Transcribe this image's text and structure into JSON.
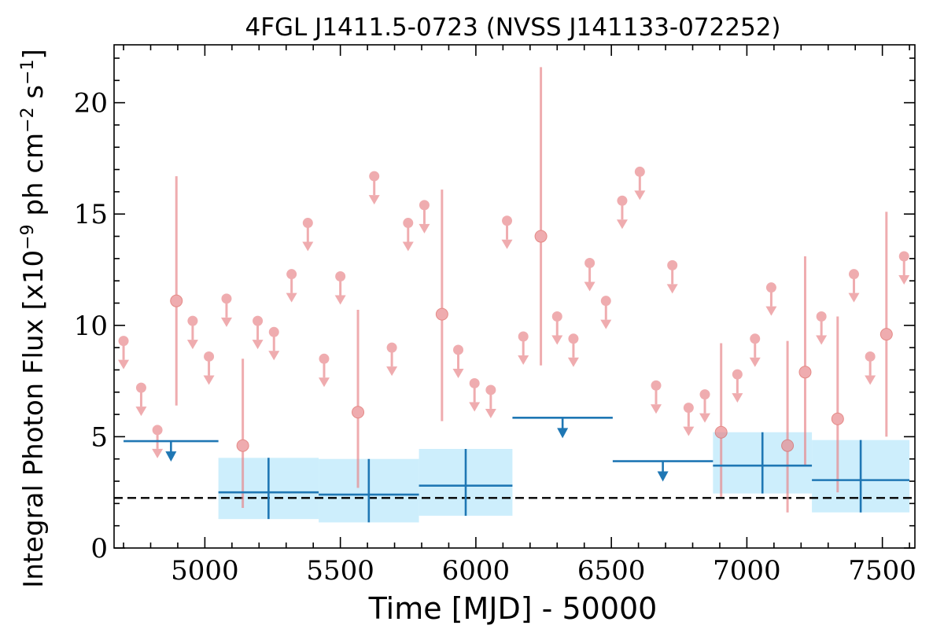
{
  "chart_data": {
    "type": "scatter",
    "title": "4FGL J1411.5-0723 (NVSS J141133-072252)",
    "xlabel": "Time [MJD] - 50000",
    "ylabel": "Integral Photon Flux [x10",
    "ylabel_exp": "−9",
    "ylabel_mid": " ph cm",
    "ylabel_exp2": "−2",
    "ylabel_end": " s",
    "ylabel_exp3": "−1",
    "ylabel_close": "]",
    "xlim": [
      4665,
      7620
    ],
    "ylim": [
      0,
      22.6
    ],
    "x_ticks": [
      "5000",
      "5500",
      "6000",
      "6500",
      "7000",
      "7500"
    ],
    "y_ticks": [
      "0",
      "5",
      "10",
      "15",
      "20"
    ],
    "reference_line": {
      "y": 2.25,
      "style": "dashed",
      "color": "#000000"
    },
    "colors": {
      "short_bins": "#e8868a",
      "long_bins": "#1f77b4",
      "band": "#cdeefc"
    },
    "short_bins_upper_limits": [
      [
        4700,
        9.3
      ],
      [
        4765,
        7.2
      ],
      [
        4825,
        5.3
      ],
      [
        4955,
        10.2
      ],
      [
        5015,
        8.6
      ],
      [
        5080,
        11.2
      ],
      [
        5195,
        10.2
      ],
      [
        5255,
        9.7
      ],
      [
        5320,
        12.3
      ],
      [
        5380,
        14.6
      ],
      [
        5440,
        8.5
      ],
      [
        5500,
        12.2
      ],
      [
        5625,
        16.7
      ],
      [
        5690,
        9.0
      ],
      [
        5750,
        14.6
      ],
      [
        5810,
        15.4
      ],
      [
        5935,
        8.9
      ],
      [
        5995,
        7.4
      ],
      [
        6055,
        7.1
      ],
      [
        6115,
        14.7
      ],
      [
        6175,
        9.5
      ],
      [
        6300,
        10.4
      ],
      [
        6360,
        9.4
      ],
      [
        6420,
        12.8
      ],
      [
        6480,
        11.1
      ],
      [
        6540,
        15.6
      ],
      [
        6605,
        16.9
      ],
      [
        6665,
        7.3
      ],
      [
        6725,
        12.7
      ],
      [
        6785,
        6.3
      ],
      [
        6845,
        6.9
      ],
      [
        6965,
        7.8
      ],
      [
        7030,
        9.4
      ],
      [
        7090,
        11.7
      ],
      [
        7275,
        10.4
      ],
      [
        7395,
        12.3
      ],
      [
        7455,
        8.6
      ],
      [
        7580,
        13.1
      ]
    ],
    "short_bins_detections": [
      [
        4895,
        11.1,
        6.4,
        16.7
      ],
      [
        5140,
        4.6,
        1.8,
        8.5
      ],
      [
        5565,
        6.1,
        2.7,
        10.7
      ],
      [
        5875,
        10.5,
        5.7,
        16.1
      ],
      [
        6240,
        14.0,
        8.2,
        21.6
      ],
      [
        6905,
        5.2,
        2.3,
        9.2
      ],
      [
        7150,
        4.6,
        1.6,
        9.3
      ],
      [
        7215,
        7.9,
        3.7,
        13.1
      ],
      [
        7335,
        5.8,
        2.5,
        10.4
      ],
      [
        7515,
        9.6,
        5.0,
        15.1
      ]
    ],
    "long_bins_upper_limits": [
      [
        4700,
        5050,
        4.8
      ],
      [
        6135,
        6505,
        5.85
      ],
      [
        6505,
        6875,
        3.9
      ]
    ],
    "long_bins_detections": [
      [
        5050,
        5420,
        2.5,
        1.3,
        4.05
      ],
      [
        5420,
        5790,
        2.4,
        1.15,
        4.0
      ],
      [
        5790,
        6135,
        2.8,
        1.45,
        4.45
      ],
      [
        6875,
        7240,
        3.7,
        2.45,
        5.2
      ],
      [
        7240,
        7600,
        3.05,
        1.6,
        4.85
      ]
    ]
  }
}
